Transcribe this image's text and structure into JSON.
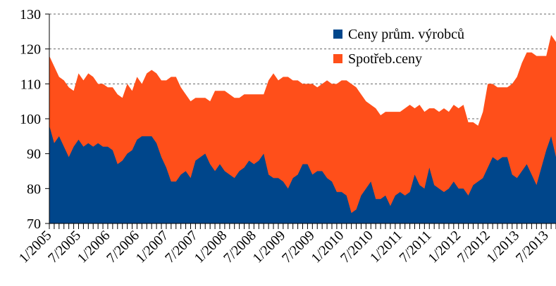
{
  "chart_data": {
    "type": "area",
    "categories": [
      "1/2005",
      null,
      null,
      null,
      null,
      null,
      "7/2005",
      null,
      null,
      null,
      null,
      null,
      "1/2006",
      null,
      null,
      null,
      null,
      null,
      "7/2006",
      null,
      null,
      null,
      null,
      null,
      "1/2007",
      null,
      null,
      null,
      null,
      null,
      "7/2007",
      null,
      null,
      null,
      null,
      null,
      "1/2008",
      null,
      null,
      null,
      null,
      null,
      "7/2008",
      null,
      null,
      null,
      null,
      null,
      "1/2009",
      null,
      null,
      null,
      null,
      null,
      "7/2009",
      null,
      null,
      null,
      null,
      null,
      "1/2010",
      null,
      null,
      null,
      null,
      null,
      "7/2010",
      null,
      null,
      null,
      null,
      null,
      "1/2011",
      null,
      null,
      null,
      null,
      null,
      "7/2011",
      null,
      null,
      null,
      null,
      null,
      "1/2012",
      null,
      null,
      null,
      null,
      null,
      "7/2012",
      null,
      null,
      null,
      null,
      null,
      "1/2013",
      null,
      null,
      null,
      null,
      null,
      "7/2013",
      null,
      null
    ],
    "series": [
      {
        "name": "Spotřeb.ceny",
        "color": "#ff4f1a",
        "values": [
          118,
          115,
          112,
          111,
          109,
          108,
          113,
          111,
          113,
          112,
          110,
          110,
          109,
          109,
          107,
          106,
          110,
          108,
          112,
          110,
          113,
          114,
          113,
          111,
          111,
          112,
          112,
          109,
          107,
          105,
          106,
          106,
          106,
          105,
          108,
          108,
          108,
          107,
          106,
          106,
          107,
          107,
          107,
          107,
          107,
          111,
          113,
          111,
          112,
          112,
          111,
          111,
          110,
          110,
          110,
          109,
          110,
          111,
          110,
          110,
          111,
          111,
          110,
          109,
          107,
          105,
          104,
          103,
          101,
          102,
          102,
          102,
          102,
          103,
          104,
          103,
          104,
          102,
          103,
          103,
          102,
          103,
          102,
          104,
          103,
          104,
          99,
          99,
          98,
          102,
          110,
          110,
          109,
          109,
          109,
          110,
          112,
          116,
          119,
          119,
          118,
          118,
          118,
          124,
          122
        ]
      },
      {
        "name": "Ceny prům. výrobců",
        "color": "#00468b",
        "values": [
          98,
          93,
          95,
          92,
          89,
          92,
          94,
          92,
          93,
          92,
          93,
          92,
          92,
          91,
          87,
          88,
          90,
          91,
          94,
          95,
          95,
          95,
          93,
          89,
          86,
          82,
          82,
          84,
          85,
          83,
          88,
          89,
          90,
          87,
          85,
          87,
          85,
          84,
          83,
          85,
          86,
          88,
          87,
          88,
          90,
          84,
          83,
          83,
          82,
          80,
          83,
          84,
          87,
          87,
          84,
          85,
          85,
          83,
          82,
          79,
          79,
          78,
          73,
          74,
          78,
          80,
          82,
          77,
          77,
          78,
          75,
          78,
          79,
          78,
          79,
          84,
          81,
          80,
          86,
          81,
          80,
          79,
          80,
          82,
          80,
          80,
          78,
          81,
          82,
          83,
          86,
          89,
          88,
          89,
          89,
          84,
          83,
          85,
          87,
          84,
          81,
          86,
          91,
          95,
          89
        ]
      }
    ],
    "ylim": [
      70,
      130
    ],
    "yticks": [
      70,
      80,
      90,
      100,
      110,
      120,
      130
    ],
    "grid": true,
    "legend": "upper right"
  }
}
